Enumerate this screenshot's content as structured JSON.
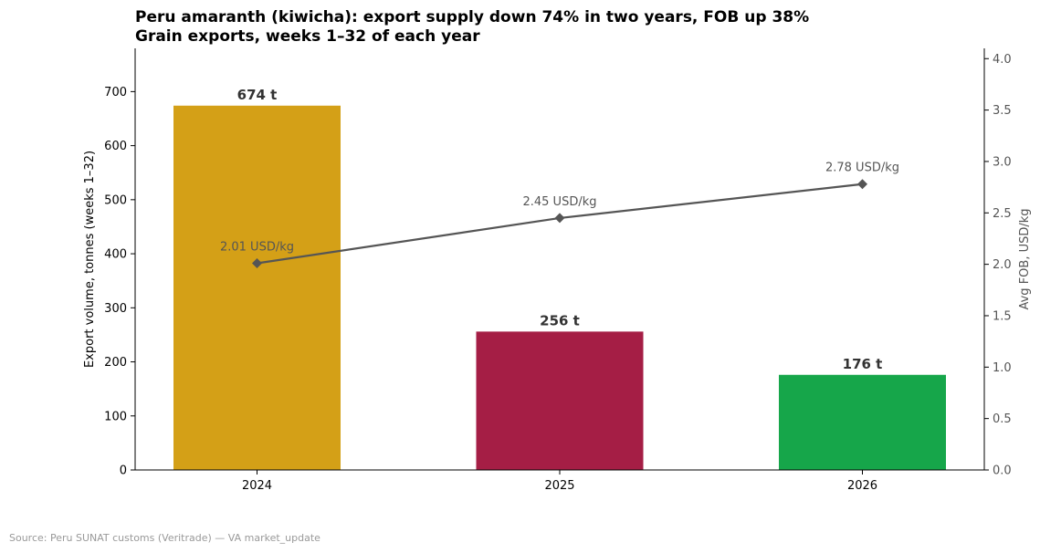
{
  "chart_data": {
    "type": "bar",
    "title_line1": "Peru amaranth (kiwicha): export supply down 74% in two years, FOB up 38%",
    "title_line2": "Grain exports, weeks 1–32 of each year",
    "categories": [
      "2024",
      "2025",
      "2026"
    ],
    "series": [
      {
        "name": "Export volume",
        "axis": "left",
        "values": [
          674,
          256,
          176
        ],
        "value_labels": [
          "674 t",
          "256 t",
          "176 t"
        ],
        "colors": [
          "#d4a017",
          "#a51e45",
          "#16a64a"
        ]
      },
      {
        "name": "Avg FOB",
        "axis": "right",
        "type": "line",
        "values": [
          2.01,
          2.45,
          2.78
        ],
        "value_labels": [
          "2.01 USD/kg",
          "2.45 USD/kg",
          "2.78 USD/kg"
        ],
        "color": "#555555",
        "marker": "diamond"
      }
    ],
    "ylabel": "Export volume, tonnes (weeks 1–32)",
    "ylabel_right": "Avg FOB, USD/kg",
    "ylim": [
      0,
      780
    ],
    "yticks": [
      0,
      100,
      200,
      300,
      400,
      500,
      600,
      700
    ],
    "ylim_right": [
      0,
      4.1
    ],
    "yticks_right": [
      0.0,
      0.5,
      1.0,
      1.5,
      2.0,
      2.5,
      3.0,
      3.5,
      4.0
    ],
    "grid": false
  },
  "source": "Source: Peru SUNAT customs (Veritrade) — VA market_update"
}
